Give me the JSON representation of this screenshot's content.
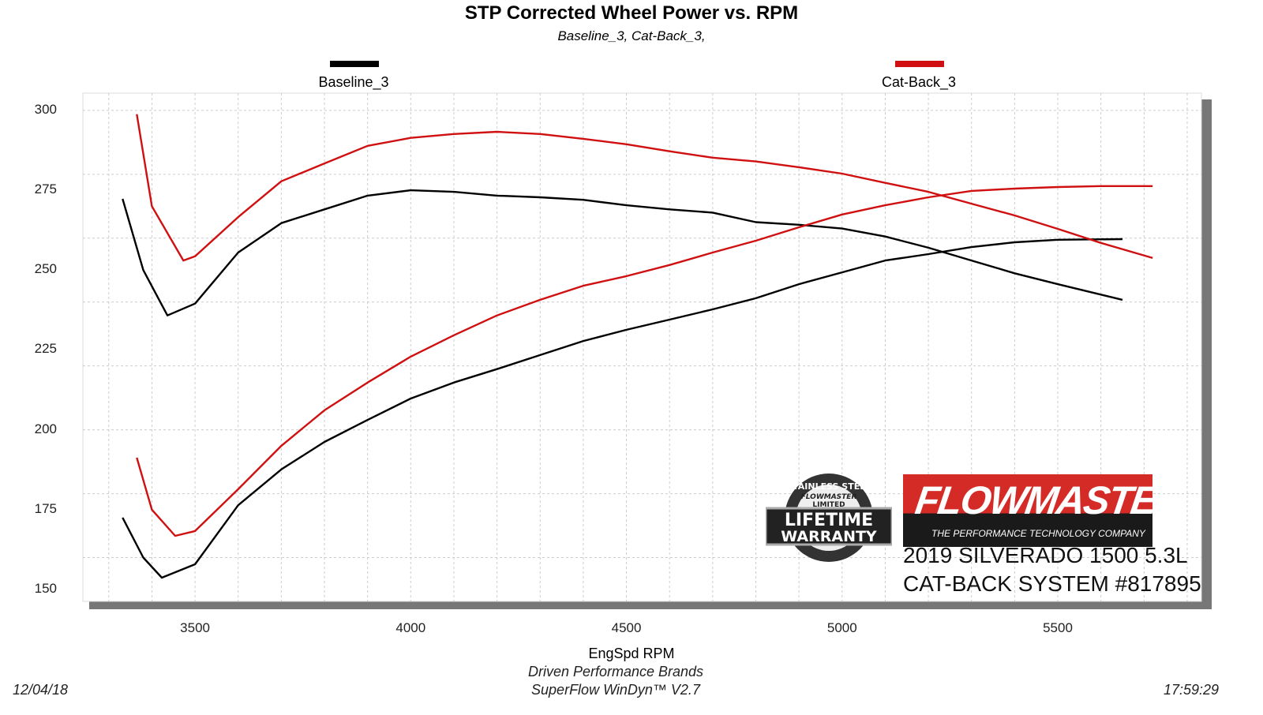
{
  "chart_data": {
    "type": "line",
    "title": "STP Corrected Wheel Power vs. RPM",
    "subtitle": "Baseline_3, Cat-Back_3,",
    "xlabel": "EngSpd  RPM",
    "ylabel": "",
    "xlim": [
      3240,
      5833
    ],
    "ylim": [
      146.3,
      305.4
    ],
    "xticks": [
      3500,
      4000,
      4500,
      5000,
      5500
    ],
    "yticks": [
      150,
      175,
      200,
      225,
      250,
      275,
      300
    ],
    "grid": true,
    "legend_position": "top",
    "legend": [
      {
        "name": "Baseline_3",
        "color": "#000000"
      },
      {
        "name": "Cat-Back_3",
        "color": "#d01010"
      }
    ],
    "series": [
      {
        "name": "Baseline_3",
        "color": "#000000",
        "x": [
          3332,
          3380,
          3436,
          3500,
          3600,
          3700,
          3800,
          3900,
          4000,
          4100,
          4200,
          4300,
          4400,
          4500,
          4600,
          4700,
          4800,
          4900,
          5000,
          5100,
          5200,
          5300,
          5400,
          5500,
          5650
        ],
        "values": [
          272.3,
          250,
          235.8,
          239.5,
          255.5,
          264.7,
          269,
          273.3,
          275,
          274.5,
          273.3,
          272.8,
          272,
          270.3,
          269,
          268,
          265,
          264.2,
          263,
          260.5,
          257,
          253,
          249,
          245.6,
          240.7
        ]
      },
      {
        "name": "Baseline_3",
        "color": "#000000",
        "x": [
          3332,
          3380,
          3423,
          3500,
          3600,
          3700,
          3800,
          3900,
          4000,
          4100,
          4200,
          4300,
          4400,
          4500,
          4600,
          4700,
          4800,
          4900,
          5000,
          5100,
          5200,
          5300,
          5400,
          5500,
          5650
        ],
        "values": [
          172.5,
          160,
          153.7,
          157.9,
          176.4,
          187.6,
          196.2,
          203.1,
          209.8,
          214.8,
          219,
          223.4,
          227.8,
          231.3,
          234.5,
          237.7,
          241.2,
          245.6,
          249.3,
          253,
          255,
          257.2,
          258.7,
          259.5,
          259.7
        ]
      },
      {
        "name": "Cat-Back_3",
        "color": "#d01010",
        "x": [
          3365,
          3400,
          3473,
          3500,
          3600,
          3700,
          3800,
          3900,
          4000,
          4100,
          4200,
          4300,
          4400,
          4500,
          4600,
          4700,
          4800,
          4900,
          5000,
          5100,
          5200,
          5300,
          5400,
          5500,
          5600,
          5720
        ],
        "values": [
          298.8,
          270,
          253,
          254.3,
          266.6,
          277.8,
          283.4,
          288.9,
          291.4,
          292.6,
          293.3,
          292.6,
          291.1,
          289.4,
          287.2,
          285.2,
          284,
          282.2,
          280.2,
          277.3,
          274.5,
          270.8,
          267.1,
          262.9,
          258.5,
          253.8
        ]
      },
      {
        "name": "Cat-Back_3",
        "color": "#d01010",
        "x": [
          3365,
          3400,
          3454,
          3500,
          3600,
          3700,
          3800,
          3900,
          4000,
          4100,
          4200,
          4300,
          4400,
          4500,
          4600,
          4700,
          4800,
          4900,
          5000,
          5100,
          5200,
          5300,
          5400,
          5500,
          5600,
          5720
        ],
        "values": [
          191.3,
          175,
          166.8,
          168.3,
          181.4,
          195,
          206.1,
          214.8,
          222.9,
          229.6,
          235.8,
          240.7,
          245.1,
          248.1,
          251.6,
          255.5,
          259.2,
          263.4,
          267.4,
          270.3,
          272.8,
          274.8,
          275.5,
          276,
          276.3,
          276.3
        ]
      }
    ]
  },
  "logos": {
    "warranty": {
      "arc": "STAINLESS STEEL",
      "brand": "FLOWMASTER",
      "limited": "LIMITED",
      "line1": "LIFETIME",
      "line2": "WARRANTY"
    },
    "flowmaster": {
      "brand": "FLOWMASTER",
      "tagline": "THE PERFORMANCE TECHNOLOGY COMPANY"
    }
  },
  "annotation": {
    "line1": "2019 SILVERADO 1500 5.3L",
    "line2": "CAT-BACK SYSTEM #817895"
  },
  "footer": {
    "date": "12/04/18",
    "company": "Driven Performance Brands",
    "software": "SuperFlow WinDyn™  V2.7",
    "time": "17:59:29"
  }
}
